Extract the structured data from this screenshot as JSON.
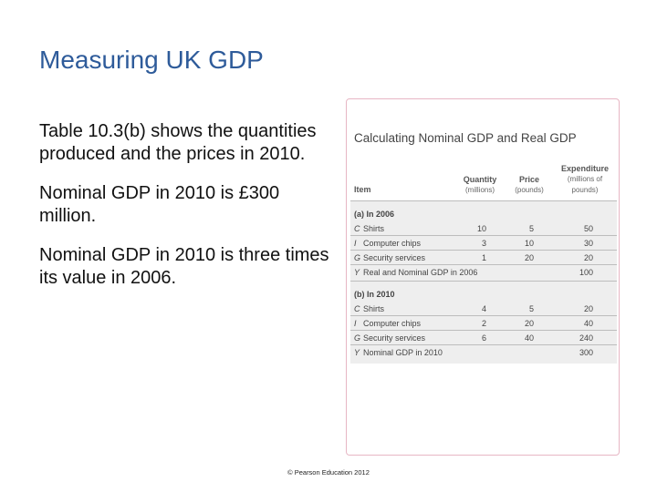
{
  "slide": {
    "title": "Measuring UK GDP",
    "paragraphs": [
      "Table 10.3(b) shows the quantities produced and the prices in 2010.",
      "Nominal GDP in 2010 is £300 million.",
      "Nominal GDP in 2010 is three times its value in 2006."
    ],
    "footer": "© Pearson Education 2012"
  },
  "table": {
    "title": "Calculating Nominal GDP and Real GDP",
    "col_item": "Item",
    "col_quantity": "Quantity",
    "col_quantity_unit": "(millions)",
    "col_price": "Price",
    "col_price_unit": "(pounds)",
    "col_expenditure": "Expenditure",
    "col_expenditure_unit_1": "(millions of",
    "col_expenditure_unit_2": "pounds)",
    "section_a": "(a) In 2006",
    "section_b": "(b) In 2010",
    "rows_a": [
      {
        "letter": "C",
        "item": "Shirts",
        "quantity": "10",
        "price": "5",
        "expenditure": "50"
      },
      {
        "letter": "I",
        "item": "Computer chips",
        "quantity": "3",
        "price": "10",
        "expenditure": "30"
      },
      {
        "letter": "G",
        "item": "Security services",
        "quantity": "1",
        "price": "20",
        "expenditure": "20"
      },
      {
        "letter": "Y",
        "item": "Real and Nominal GDP in 2006",
        "quantity": "",
        "price": "",
        "expenditure": "100"
      }
    ],
    "rows_b": [
      {
        "letter": "C",
        "item": "Shirts",
        "quantity": "4",
        "price": "5",
        "expenditure": "20"
      },
      {
        "letter": "I",
        "item": "Computer chips",
        "quantity": "2",
        "price": "20",
        "expenditure": "40"
      },
      {
        "letter": "G",
        "item": "Security services",
        "quantity": "6",
        "price": "40",
        "expenditure": "240"
      },
      {
        "letter": "Y",
        "item": "Nominal GDP in 2010",
        "quantity": "",
        "price": "",
        "expenditure": "300"
      }
    ]
  }
}
